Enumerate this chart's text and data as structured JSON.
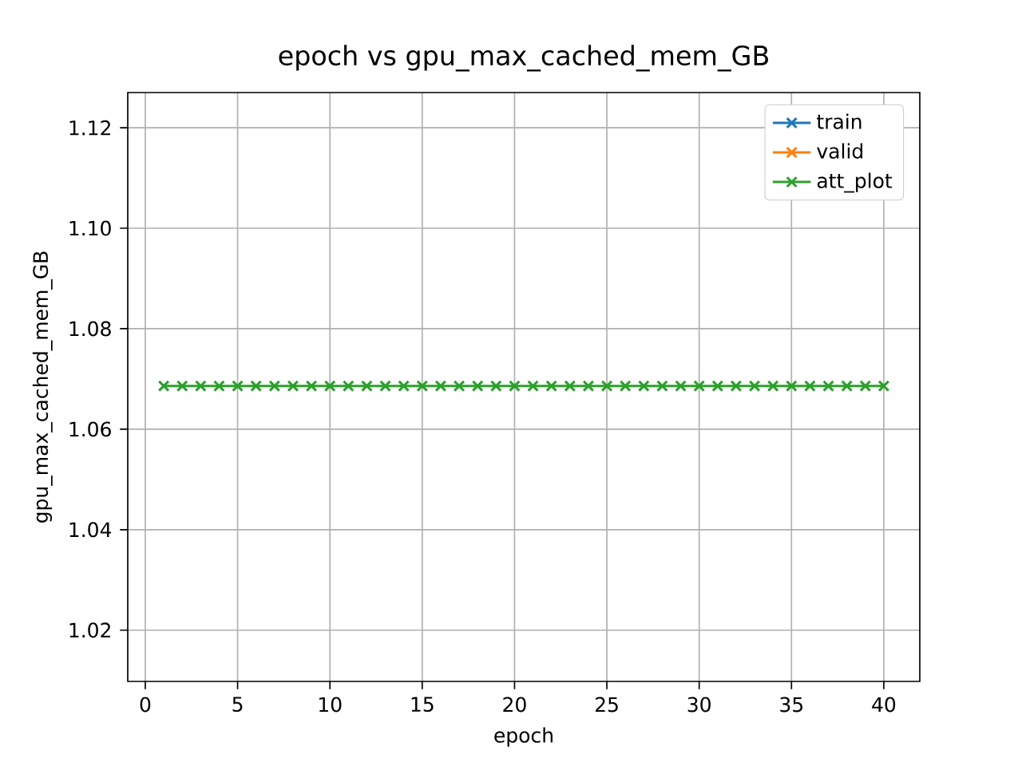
{
  "chart_data": {
    "type": "line",
    "title": "epoch vs gpu_max_cached_mem_GB",
    "xlabel": "epoch",
    "ylabel": "gpu_max_cached_mem_GB",
    "x": [
      1,
      2,
      3,
      4,
      5,
      6,
      7,
      8,
      9,
      10,
      11,
      12,
      13,
      14,
      15,
      16,
      17,
      18,
      19,
      20,
      21,
      22,
      23,
      24,
      25,
      26,
      27,
      28,
      29,
      30,
      31,
      32,
      33,
      34,
      35,
      36,
      37,
      38,
      39,
      40
    ],
    "series": [
      {
        "name": "train",
        "color": "#1f77b4",
        "values": [
          null,
          null,
          null,
          null,
          null,
          null,
          null,
          null,
          null,
          null,
          null,
          null,
          null,
          null,
          null,
          null,
          null,
          null,
          null,
          null,
          null,
          null,
          null,
          null,
          null,
          null,
          null,
          null,
          null,
          null,
          null,
          null,
          null,
          null,
          null,
          null,
          null,
          null,
          null,
          null
        ]
      },
      {
        "name": "valid",
        "color": "#ff7f0e",
        "values": [
          null,
          null,
          null,
          null,
          null,
          null,
          null,
          null,
          null,
          null,
          null,
          null,
          null,
          null,
          null,
          null,
          null,
          null,
          null,
          null,
          null,
          null,
          null,
          null,
          null,
          null,
          null,
          null,
          null,
          null,
          null,
          null,
          null,
          null,
          null,
          null,
          null,
          null,
          null,
          null
        ]
      },
      {
        "name": "att_plot",
        "color": "#2ca02c",
        "values": [
          1.0686,
          1.0686,
          1.0686,
          1.0686,
          1.0686,
          1.0686,
          1.0686,
          1.0686,
          1.0686,
          1.0686,
          1.0686,
          1.0686,
          1.0686,
          1.0686,
          1.0686,
          1.0686,
          1.0686,
          1.0686,
          1.0686,
          1.0686,
          1.0686,
          1.0686,
          1.0686,
          1.0686,
          1.0686,
          1.0686,
          1.0686,
          1.0686,
          1.0686,
          1.0686,
          1.0686,
          1.0686,
          1.0686,
          1.0686,
          1.0686,
          1.0686,
          1.0686,
          1.0686,
          1.0686,
          1.0686
        ]
      }
    ],
    "xlim": [
      -0.95,
      41.95
    ],
    "ylim": [
      1.0098,
      1.127
    ],
    "xticks": [
      0,
      5,
      10,
      15,
      20,
      25,
      30,
      35,
      40
    ],
    "yticks": [
      1.02,
      1.04,
      1.06,
      1.08,
      {
        "value": 1.1,
        "label": "1.10"
      },
      1.12
    ],
    "grid": true,
    "legend": "top right",
    "marker": "cross",
    "line_style": "solid"
  }
}
